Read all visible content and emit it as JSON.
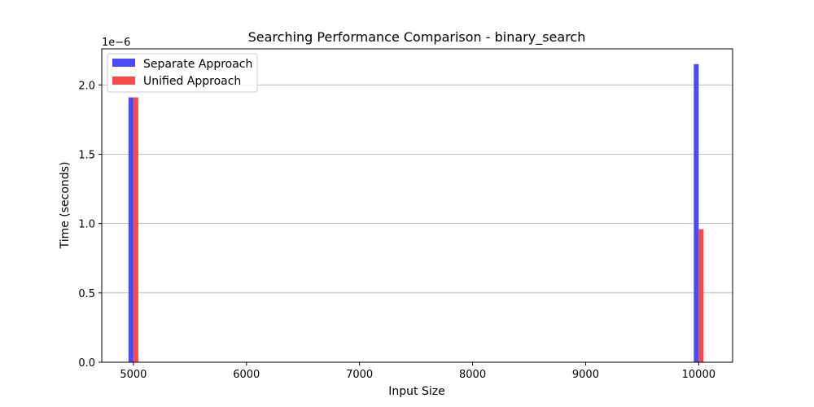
{
  "chart_data": {
    "type": "bar",
    "title": "Searching Performance Comparison - binary_search",
    "xlabel": "Input Size",
    "ylabel": "Time (seconds)",
    "y_offset_label": "1e−6",
    "x": [
      5000,
      10000
    ],
    "xlim": [
      4720,
      10300
    ],
    "ylim": [
      0,
      2.26
    ],
    "y_scale_note": "values in units of 1e-6 seconds",
    "xticks": [
      5000,
      6000,
      7000,
      8000,
      9000,
      10000
    ],
    "yticks": [
      0.0,
      0.5,
      1.0,
      1.5,
      2.0
    ],
    "ytick_labels": [
      "0.0",
      "0.5",
      "1.0",
      "1.5",
      "2.0"
    ],
    "grid": "y-axis horizontal lines",
    "legend_position": "top-left",
    "series": [
      {
        "name": "Separate Approach",
        "color": "#4b4bf5",
        "values": [
          1.91,
          2.15
        ]
      },
      {
        "name": "Unified Approach",
        "color": "#f54b4b",
        "values": [
          1.91,
          0.96
        ]
      }
    ]
  }
}
